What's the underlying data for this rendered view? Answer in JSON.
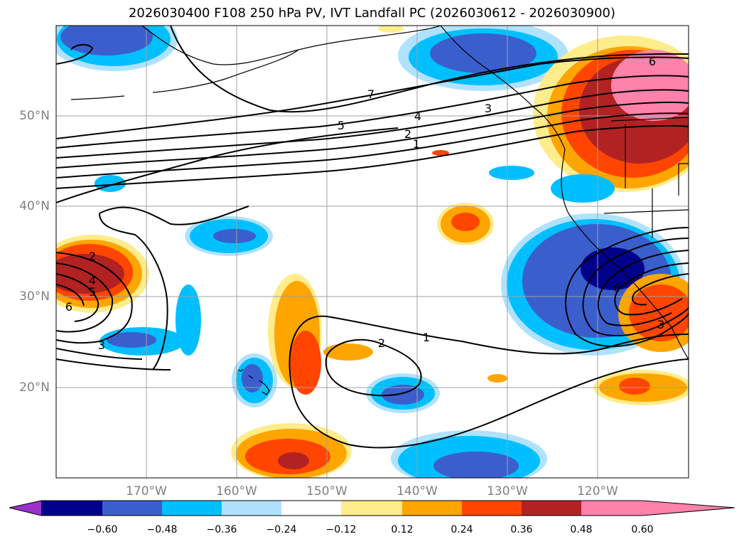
{
  "title": "2026030400 F108 250 hPa PV, IVT Landfall PC (2026030612 - 2026030900)",
  "lat_labels": [
    "50°N",
    "40°N",
    "30°N",
    "20°N"
  ],
  "lon_labels": [
    "170°W",
    "160°W",
    "150°W",
    "140°W",
    "130°W",
    "120°W"
  ],
  "colorbar": {
    "ticks": [
      "−0.60",
      "−0.48",
      "−0.36",
      "−0.24",
      "−0.12",
      "0.12",
      "0.24",
      "0.36",
      "0.48",
      "0.60"
    ],
    "colors": [
      "#9932cc",
      "#00008b",
      "#3a5fcd",
      "#00bfff",
      "#b0e2ff",
      "#ffffff",
      "#ffec8b",
      "#ffa500",
      "#ff4500",
      "#b22222",
      "#ff82ab"
    ]
  },
  "contour_labels": [
    "1",
    "2",
    "3",
    "4",
    "5",
    "6",
    "7"
  ]
}
